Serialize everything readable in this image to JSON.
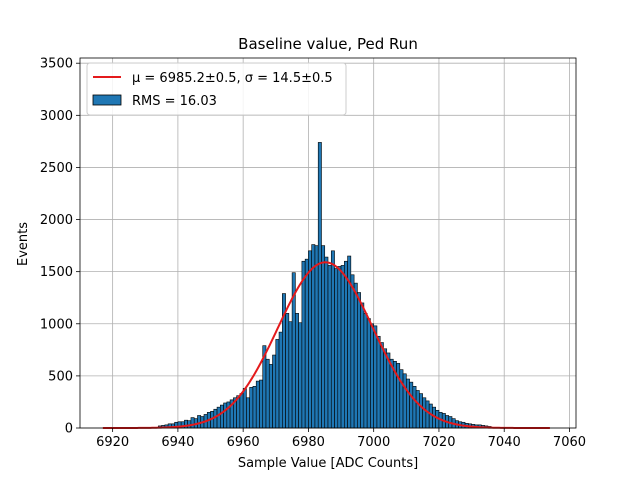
{
  "chart_data": {
    "type": "bar",
    "title": "Baseline value, Ped Run",
    "xlabel": "Sample Value [ADC Counts]",
    "ylabel": "Events",
    "xlim": [
      6910,
      7062
    ],
    "ylim": [
      0,
      3550
    ],
    "xticks": [
      "6920",
      "6940",
      "6960",
      "6980",
      "7000",
      "7020",
      "7040",
      "7060"
    ],
    "yticks": [
      "0",
      "500",
      "1000",
      "1500",
      "2000",
      "2500",
      "3000",
      "3500"
    ],
    "grid": true,
    "legend_position": "top-left",
    "colors": {
      "histogram": "#1f77b4",
      "fit": "#e41a1c",
      "grid": "#b0b0b0"
    },
    "series": [
      {
        "name": "RMS = 16.03",
        "type": "histogram",
        "bin_width": 1,
        "x": [
          6934,
          6935,
          6936,
          6937,
          6938,
          6939,
          6940,
          6941,
          6942,
          6943,
          6944,
          6945,
          6946,
          6947,
          6948,
          6949,
          6950,
          6951,
          6952,
          6953,
          6954,
          6955,
          6956,
          6957,
          6958,
          6959,
          6960,
          6961,
          6962,
          6963,
          6964,
          6965,
          6966,
          6967,
          6968,
          6969,
          6970,
          6971,
          6972,
          6973,
          6974,
          6975,
          6976,
          6977,
          6978,
          6979,
          6980,
          6981,
          6982,
          6983,
          6984,
          6985,
          6986,
          6987,
          6988,
          6989,
          6990,
          6991,
          6992,
          6993,
          6994,
          6995,
          6996,
          6997,
          6998,
          6999,
          7000,
          7001,
          7002,
          7003,
          7004,
          7005,
          7006,
          7007,
          7008,
          7009,
          7010,
          7011,
          7012,
          7013,
          7014,
          7015,
          7016,
          7017,
          7018,
          7019,
          7020,
          7021,
          7022,
          7023,
          7024,
          7025,
          7026,
          7027,
          7028,
          7029,
          7030,
          7031,
          7032,
          7033,
          7034,
          7035
        ],
        "values": [
          20,
          25,
          30,
          40,
          40,
          55,
          60,
          60,
          75,
          70,
          100,
          90,
          120,
          110,
          130,
          150,
          160,
          180,
          200,
          220,
          240,
          250,
          270,
          290,
          310,
          330,
          380,
          290,
          390,
          400,
          450,
          460,
          790,
          660,
          610,
          700,
          850,
          920,
          1290,
          1100,
          1020,
          1490,
          1100,
          1010,
          1600,
          1620,
          1700,
          1760,
          1750,
          2740,
          1750,
          1640,
          1560,
          1700,
          1530,
          1550,
          1560,
          1600,
          1650,
          1470,
          1390,
          1300,
          1200,
          1100,
          1050,
          1000,
          980,
          880,
          820,
          760,
          720,
          660,
          640,
          620,
          560,
          520,
          470,
          440,
          400,
          360,
          330,
          290,
          260,
          230,
          200,
          170,
          150,
          140,
          120,
          110,
          90,
          70,
          60,
          55,
          45,
          40,
          35,
          30,
          30,
          25,
          20,
          15
        ]
      },
      {
        "name": "μ = 6985.2±0.5, σ = 14.5±0.5",
        "type": "gaussian_fit",
        "mu": 6985.2,
        "sigma": 14.5,
        "amplitude": 1590,
        "x_range": [
          6917,
          7054
        ]
      }
    ]
  }
}
